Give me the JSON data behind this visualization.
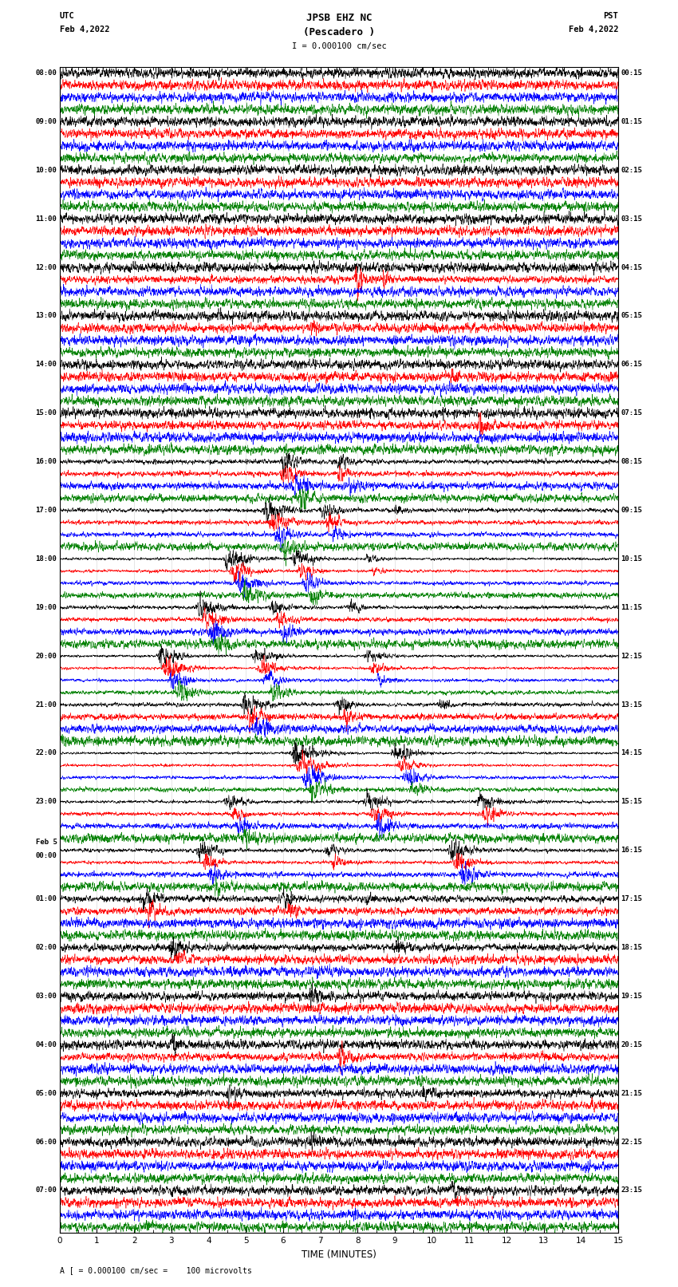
{
  "title_line1": "JPSB EHZ NC",
  "title_line2": "(Pescadero )",
  "scale_label": "I = 0.000100 cm/sec",
  "utc_label": "UTC",
  "utc_date": "Feb 4,2022",
  "pst_label": "PST",
  "pst_date": "Feb 4,2022",
  "bottom_label": "A [ = 0.000100 cm/sec =    100 microvolts",
  "xlabel": "TIME (MINUTES)",
  "xlim": [
    0,
    15
  ],
  "xticks": [
    0,
    1,
    2,
    3,
    4,
    5,
    6,
    7,
    8,
    9,
    10,
    11,
    12,
    13,
    14,
    15
  ],
  "colors": [
    "black",
    "red",
    "blue",
    "green"
  ],
  "trace_linewidth": 0.4,
  "num_rows": 96,
  "left_times": [
    "08:00",
    "",
    "",
    "",
    "09:00",
    "",
    "",
    "",
    "10:00",
    "",
    "",
    "",
    "11:00",
    "",
    "",
    "",
    "12:00",
    "",
    "",
    "",
    "13:00",
    "",
    "",
    "",
    "14:00",
    "",
    "",
    "",
    "15:00",
    "",
    "",
    "",
    "16:00",
    "",
    "",
    "",
    "17:00",
    "",
    "",
    "",
    "18:00",
    "",
    "",
    "",
    "19:00",
    "",
    "",
    "",
    "20:00",
    "",
    "",
    "",
    "21:00",
    "",
    "",
    "",
    "22:00",
    "",
    "",
    "",
    "23:00",
    "",
    "",
    "",
    "Feb 5\n00:00",
    "",
    "",
    "",
    "01:00",
    "",
    "",
    "",
    "02:00",
    "",
    "",
    "",
    "03:00",
    "",
    "",
    "",
    "04:00",
    "",
    "",
    "",
    "05:00",
    "",
    "",
    "",
    "06:00",
    "",
    "",
    "",
    "07:00",
    "",
    "",
    ""
  ],
  "right_times": [
    "00:15",
    "",
    "",
    "",
    "01:15",
    "",
    "",
    "",
    "02:15",
    "",
    "",
    "",
    "03:15",
    "",
    "",
    "",
    "04:15",
    "",
    "",
    "",
    "05:15",
    "",
    "",
    "",
    "06:15",
    "",
    "",
    "",
    "07:15",
    "",
    "",
    "",
    "08:15",
    "",
    "",
    "",
    "09:15",
    "",
    "",
    "",
    "10:15",
    "",
    "",
    "",
    "11:15",
    "",
    "",
    "",
    "12:15",
    "",
    "",
    "",
    "13:15",
    "",
    "",
    "",
    "14:15",
    "",
    "",
    "",
    "15:15",
    "",
    "",
    "",
    "16:15",
    "",
    "",
    "",
    "17:15",
    "",
    "",
    "",
    "18:15",
    "",
    "",
    "",
    "19:15",
    "",
    "",
    "",
    "20:15",
    "",
    "",
    "",
    "21:15",
    "",
    "",
    "",
    "22:15",
    "",
    "",
    "",
    "23:15",
    "",
    "",
    ""
  ]
}
